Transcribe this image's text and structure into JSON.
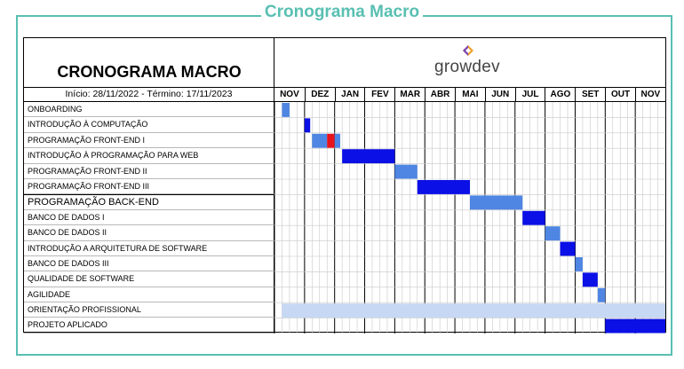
{
  "frame_title": "Cronograma Macro",
  "sheet": {
    "title": "CRONOGRAMA MACRO",
    "dates": "Início: 28/11/2022 - Término: 17/11/2023",
    "logo_text": "growdev",
    "months": [
      "NOV",
      "DEZ",
      "JAN",
      "FEV",
      "MAR",
      "ABR",
      "MAI",
      "JUN",
      "JUL",
      "AGO",
      "SET",
      "OUT",
      "NOV"
    ],
    "rows": [
      {
        "label": "ONBOARDING"
      },
      {
        "label": "INTRODUÇÃO À COMPUTAÇÃO"
      },
      {
        "label": "PROGRAMAÇÃO FRONT-END I"
      },
      {
        "label": "INTRODUÇÃO À PROGRAMAÇÃO PARA WEB"
      },
      {
        "label": "PROGRAMAÇÃO FRONT-END II"
      },
      {
        "label": "PROGRAMAÇÃO FRONT-END III"
      },
      {
        "label": "PROGRAMAÇÃO BACK-END"
      },
      {
        "label": "BANCO DE DADOS I"
      },
      {
        "label": "BANCO DE DADOS II"
      },
      {
        "label": "INTRODUÇÃO A ARQUITETURA DE SOFTWARE"
      },
      {
        "label": "BANCO DE DADOS III"
      },
      {
        "label": "QUALIDADE DE SOFTWARE"
      },
      {
        "label": "AGILIDADE"
      },
      {
        "label": "ORIENTAÇÃO PROFISSIONAL"
      },
      {
        "label": "PROJETO APLICADO"
      }
    ]
  },
  "colors": {
    "frame": "#59bfb2",
    "light_blue": "#4f86e3",
    "dark_blue": "#0b10e6",
    "pale_blue": "#c6d8f4",
    "red": "#e8141c"
  }
}
